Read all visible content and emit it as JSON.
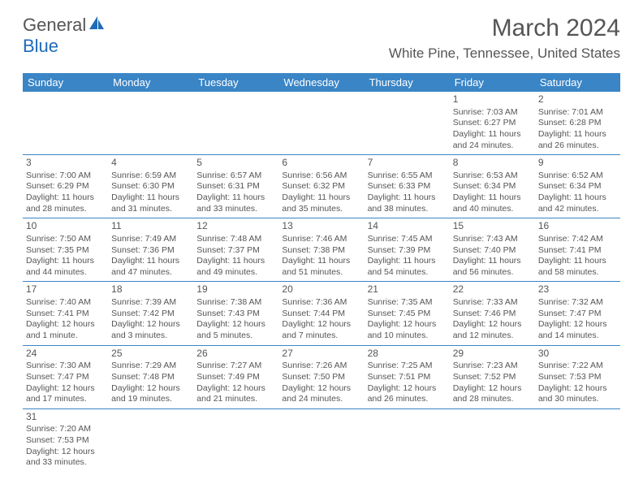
{
  "logo": {
    "text1": "General",
    "text2": "Blue"
  },
  "title": "March 2024",
  "location": "White Pine, Tennessee, United States",
  "colors": {
    "header_bg": "#3a85c6",
    "header_fg": "#ffffff",
    "border": "#3a85c6",
    "text": "#555555"
  },
  "weekdays": [
    "Sunday",
    "Monday",
    "Tuesday",
    "Wednesday",
    "Thursday",
    "Friday",
    "Saturday"
  ],
  "weeks": [
    [
      null,
      null,
      null,
      null,
      null,
      {
        "n": "1",
        "sr": "Sunrise: 7:03 AM",
        "ss": "Sunset: 6:27 PM",
        "d1": "Daylight: 11 hours",
        "d2": "and 24 minutes."
      },
      {
        "n": "2",
        "sr": "Sunrise: 7:01 AM",
        "ss": "Sunset: 6:28 PM",
        "d1": "Daylight: 11 hours",
        "d2": "and 26 minutes."
      }
    ],
    [
      {
        "n": "3",
        "sr": "Sunrise: 7:00 AM",
        "ss": "Sunset: 6:29 PM",
        "d1": "Daylight: 11 hours",
        "d2": "and 28 minutes."
      },
      {
        "n": "4",
        "sr": "Sunrise: 6:59 AM",
        "ss": "Sunset: 6:30 PM",
        "d1": "Daylight: 11 hours",
        "d2": "and 31 minutes."
      },
      {
        "n": "5",
        "sr": "Sunrise: 6:57 AM",
        "ss": "Sunset: 6:31 PM",
        "d1": "Daylight: 11 hours",
        "d2": "and 33 minutes."
      },
      {
        "n": "6",
        "sr": "Sunrise: 6:56 AM",
        "ss": "Sunset: 6:32 PM",
        "d1": "Daylight: 11 hours",
        "d2": "and 35 minutes."
      },
      {
        "n": "7",
        "sr": "Sunrise: 6:55 AM",
        "ss": "Sunset: 6:33 PM",
        "d1": "Daylight: 11 hours",
        "d2": "and 38 minutes."
      },
      {
        "n": "8",
        "sr": "Sunrise: 6:53 AM",
        "ss": "Sunset: 6:34 PM",
        "d1": "Daylight: 11 hours",
        "d2": "and 40 minutes."
      },
      {
        "n": "9",
        "sr": "Sunrise: 6:52 AM",
        "ss": "Sunset: 6:34 PM",
        "d1": "Daylight: 11 hours",
        "d2": "and 42 minutes."
      }
    ],
    [
      {
        "n": "10",
        "sr": "Sunrise: 7:50 AM",
        "ss": "Sunset: 7:35 PM",
        "d1": "Daylight: 11 hours",
        "d2": "and 44 minutes."
      },
      {
        "n": "11",
        "sr": "Sunrise: 7:49 AM",
        "ss": "Sunset: 7:36 PM",
        "d1": "Daylight: 11 hours",
        "d2": "and 47 minutes."
      },
      {
        "n": "12",
        "sr": "Sunrise: 7:48 AM",
        "ss": "Sunset: 7:37 PM",
        "d1": "Daylight: 11 hours",
        "d2": "and 49 minutes."
      },
      {
        "n": "13",
        "sr": "Sunrise: 7:46 AM",
        "ss": "Sunset: 7:38 PM",
        "d1": "Daylight: 11 hours",
        "d2": "and 51 minutes."
      },
      {
        "n": "14",
        "sr": "Sunrise: 7:45 AM",
        "ss": "Sunset: 7:39 PM",
        "d1": "Daylight: 11 hours",
        "d2": "and 54 minutes."
      },
      {
        "n": "15",
        "sr": "Sunrise: 7:43 AM",
        "ss": "Sunset: 7:40 PM",
        "d1": "Daylight: 11 hours",
        "d2": "and 56 minutes."
      },
      {
        "n": "16",
        "sr": "Sunrise: 7:42 AM",
        "ss": "Sunset: 7:41 PM",
        "d1": "Daylight: 11 hours",
        "d2": "and 58 minutes."
      }
    ],
    [
      {
        "n": "17",
        "sr": "Sunrise: 7:40 AM",
        "ss": "Sunset: 7:41 PM",
        "d1": "Daylight: 12 hours",
        "d2": "and 1 minute."
      },
      {
        "n": "18",
        "sr": "Sunrise: 7:39 AM",
        "ss": "Sunset: 7:42 PM",
        "d1": "Daylight: 12 hours",
        "d2": "and 3 minutes."
      },
      {
        "n": "19",
        "sr": "Sunrise: 7:38 AM",
        "ss": "Sunset: 7:43 PM",
        "d1": "Daylight: 12 hours",
        "d2": "and 5 minutes."
      },
      {
        "n": "20",
        "sr": "Sunrise: 7:36 AM",
        "ss": "Sunset: 7:44 PM",
        "d1": "Daylight: 12 hours",
        "d2": "and 7 minutes."
      },
      {
        "n": "21",
        "sr": "Sunrise: 7:35 AM",
        "ss": "Sunset: 7:45 PM",
        "d1": "Daylight: 12 hours",
        "d2": "and 10 minutes."
      },
      {
        "n": "22",
        "sr": "Sunrise: 7:33 AM",
        "ss": "Sunset: 7:46 PM",
        "d1": "Daylight: 12 hours",
        "d2": "and 12 minutes."
      },
      {
        "n": "23",
        "sr": "Sunrise: 7:32 AM",
        "ss": "Sunset: 7:47 PM",
        "d1": "Daylight: 12 hours",
        "d2": "and 14 minutes."
      }
    ],
    [
      {
        "n": "24",
        "sr": "Sunrise: 7:30 AM",
        "ss": "Sunset: 7:47 PM",
        "d1": "Daylight: 12 hours",
        "d2": "and 17 minutes."
      },
      {
        "n": "25",
        "sr": "Sunrise: 7:29 AM",
        "ss": "Sunset: 7:48 PM",
        "d1": "Daylight: 12 hours",
        "d2": "and 19 minutes."
      },
      {
        "n": "26",
        "sr": "Sunrise: 7:27 AM",
        "ss": "Sunset: 7:49 PM",
        "d1": "Daylight: 12 hours",
        "d2": "and 21 minutes."
      },
      {
        "n": "27",
        "sr": "Sunrise: 7:26 AM",
        "ss": "Sunset: 7:50 PM",
        "d1": "Daylight: 12 hours",
        "d2": "and 24 minutes."
      },
      {
        "n": "28",
        "sr": "Sunrise: 7:25 AM",
        "ss": "Sunset: 7:51 PM",
        "d1": "Daylight: 12 hours",
        "d2": "and 26 minutes."
      },
      {
        "n": "29",
        "sr": "Sunrise: 7:23 AM",
        "ss": "Sunset: 7:52 PM",
        "d1": "Daylight: 12 hours",
        "d2": "and 28 minutes."
      },
      {
        "n": "30",
        "sr": "Sunrise: 7:22 AM",
        "ss": "Sunset: 7:53 PM",
        "d1": "Daylight: 12 hours",
        "d2": "and 30 minutes."
      }
    ],
    [
      {
        "n": "31",
        "sr": "Sunrise: 7:20 AM",
        "ss": "Sunset: 7:53 PM",
        "d1": "Daylight: 12 hours",
        "d2": "and 33 minutes."
      },
      null,
      null,
      null,
      null,
      null,
      null
    ]
  ]
}
